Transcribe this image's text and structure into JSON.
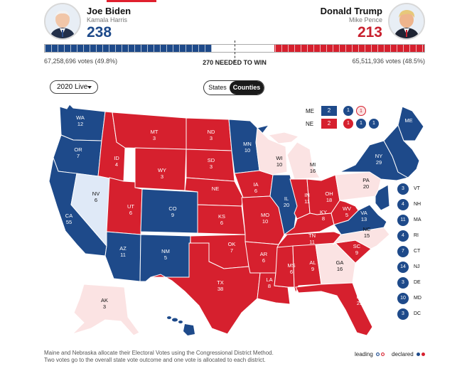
{
  "candidates": {
    "dem": {
      "name": "Joe Biden",
      "running_mate": "Kamala Harris",
      "electoral_votes": "238",
      "popular_votes": "67,258,696 votes (49.8%)",
      "photo": "biden-photo"
    },
    "rep": {
      "name": "Donald Trump",
      "running_mate": "Mike Pence",
      "electoral_votes": "213",
      "popular_votes": "65,511,936 votes (48.5%)",
      "photo": "trump-photo"
    }
  },
  "tally_bar": {
    "dem_share": 0.44,
    "rep_share": 0.395,
    "threshold_label": "270 NEEDED TO WIN"
  },
  "controls": {
    "year_select": "2020 Live",
    "view_toggle": [
      "States",
      "Counties"
    ],
    "active_view": "Counties"
  },
  "colors": {
    "dem_declared": "#1e4a8a",
    "rep_declared": "#d6202e",
    "dem_leading": "#dfe9f7",
    "rep_leading": "#fbe3e3",
    "undeclared_border": "#ffffff"
  },
  "states": [
    {
      "code": "WA",
      "ev": "12",
      "status": "dem"
    },
    {
      "code": "OR",
      "ev": "7",
      "status": "dem"
    },
    {
      "code": "CA",
      "ev": "55",
      "status": "dem"
    },
    {
      "code": "NV",
      "ev": "6",
      "status": "dem-leading"
    },
    {
      "code": "ID",
      "ev": "4",
      "status": "rep"
    },
    {
      "code": "MT",
      "ev": "3",
      "status": "rep"
    },
    {
      "code": "WY",
      "ev": "3",
      "status": "rep"
    },
    {
      "code": "UT",
      "ev": "6",
      "status": "rep"
    },
    {
      "code": "AZ",
      "ev": "11",
      "status": "dem"
    },
    {
      "code": "CO",
      "ev": "9",
      "status": "dem"
    },
    {
      "code": "NM",
      "ev": "5",
      "status": "dem"
    },
    {
      "code": "ND",
      "ev": "3",
      "status": "rep"
    },
    {
      "code": "SD",
      "ev": "3",
      "status": "rep"
    },
    {
      "code": "NE",
      "ev": "",
      "status": "rep"
    },
    {
      "code": "KS",
      "ev": "6",
      "status": "rep"
    },
    {
      "code": "OK",
      "ev": "7",
      "status": "rep"
    },
    {
      "code": "TX",
      "ev": "38",
      "status": "rep"
    },
    {
      "code": "MN",
      "ev": "10",
      "status": "dem"
    },
    {
      "code": "IA",
      "ev": "6",
      "status": "rep"
    },
    {
      "code": "MO",
      "ev": "10",
      "status": "rep"
    },
    {
      "code": "AR",
      "ev": "6",
      "status": "rep"
    },
    {
      "code": "LA",
      "ev": "8",
      "status": "rep"
    },
    {
      "code": "WI",
      "ev": "10",
      "status": "rep-leading"
    },
    {
      "code": "IL",
      "ev": "20",
      "status": "dem"
    },
    {
      "code": "MI",
      "ev": "16",
      "status": "rep-leading"
    },
    {
      "code": "IN",
      "ev": "11",
      "status": "rep"
    },
    {
      "code": "OH",
      "ev": "18",
      "status": "rep"
    },
    {
      "code": "KY",
      "ev": "8",
      "status": "rep"
    },
    {
      "code": "TN",
      "ev": "11",
      "status": "rep"
    },
    {
      "code": "MS",
      "ev": "6",
      "status": "rep"
    },
    {
      "code": "AL",
      "ev": "9",
      "status": "rep"
    },
    {
      "code": "GA",
      "ev": "16",
      "status": "rep-leading"
    },
    {
      "code": "FL",
      "ev": "29",
      "status": "rep"
    },
    {
      "code": "SC",
      "ev": "9",
      "status": "rep"
    },
    {
      "code": "NC",
      "ev": "15",
      "status": "rep-leading"
    },
    {
      "code": "VA",
      "ev": "13",
      "status": "dem"
    },
    {
      "code": "WV",
      "ev": "5",
      "status": "rep"
    },
    {
      "code": "PA",
      "ev": "20",
      "status": "rep-leading"
    },
    {
      "code": "NY",
      "ev": "29",
      "status": "dem"
    },
    {
      "code": "ME",
      "ev": "",
      "status": "dem"
    },
    {
      "code": "AK",
      "ev": "3",
      "status": "rep-leading"
    },
    {
      "code": "HI",
      "ev": "4",
      "status": "dem"
    }
  ],
  "split_states": [
    {
      "code": "ME",
      "total": "2",
      "total_party": "dem",
      "districts": [
        {
          "ev": "1",
          "status": "dem"
        },
        {
          "ev": "1",
          "status": "rep-leading"
        }
      ]
    },
    {
      "code": "NE",
      "total": "2",
      "total_party": "rep",
      "districts": [
        {
          "ev": "1",
          "status": "rep"
        },
        {
          "ev": "1",
          "status": "dem"
        },
        {
          "ev": "1",
          "status": "rep"
        }
      ]
    }
  ],
  "small_states": [
    {
      "ev": "3",
      "code": "VT"
    },
    {
      "ev": "4",
      "code": "NH"
    },
    {
      "ev": "11",
      "code": "MA"
    },
    {
      "ev": "4",
      "code": "RI"
    },
    {
      "ev": "7",
      "code": "CT"
    },
    {
      "ev": "14",
      "code": "NJ"
    },
    {
      "ev": "3",
      "code": "DE"
    },
    {
      "ev": "10",
      "code": "MD"
    },
    {
      "ev": "3",
      "code": "DC"
    }
  ],
  "footnote": [
    "Maine and Nebraska allocate their Electoral Votes using the Congressional District Method.",
    "Two votes go to the overall state vote outcome and one vote is allocated to each district."
  ],
  "legend": {
    "leading": "leading",
    "declared": "declared"
  }
}
